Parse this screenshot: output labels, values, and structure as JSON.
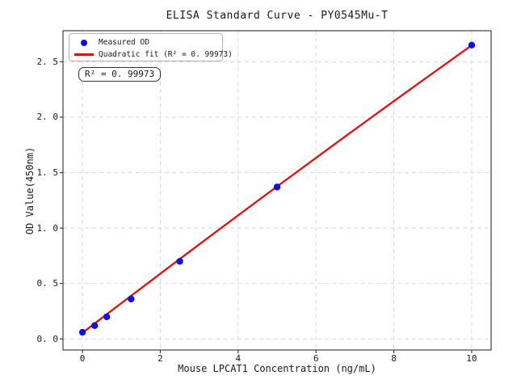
{
  "chart_data": {
    "type": "scatter",
    "title": "ELISA Standard Curve - PY0545Mu-T",
    "xlabel": "Mouse LPCAT1 Concentration (ng/mL)",
    "ylabel": "OD Value(450nm)",
    "xlim": [
      -0.5,
      10.5
    ],
    "ylim": [
      -0.1,
      2.78
    ],
    "x_ticks": {
      "values": [
        0,
        2,
        4,
        6,
        8,
        10
      ],
      "labels": [
        "0",
        "2",
        "4",
        "6",
        "8",
        "10"
      ]
    },
    "y_ticks": {
      "values": [
        0.0,
        0.5,
        1.0,
        1.5,
        2.0,
        2.5
      ],
      "labels": [
        "0. 0",
        "0. 5",
        "1. 0",
        "1. 5",
        "2. 0",
        "2. 5"
      ]
    },
    "grid": {
      "show": true,
      "style": "dashed",
      "color": "#d4d4d4"
    },
    "colors": {
      "scatter": "#0b0bee",
      "fit_line": "#e60d0d",
      "spine": "#2e2e2e"
    },
    "series": [
      {
        "name": "Measured OD",
        "type": "scatter",
        "color": "#0b0bee",
        "x": [
          0,
          0.313,
          0.625,
          1.25,
          2.5,
          5,
          10
        ],
        "y": [
          0.06,
          0.12,
          0.2,
          0.36,
          0.7,
          1.37,
          2.65
        ]
      },
      {
        "name": "Quadratic fit (R² = 0. 99973)",
        "type": "line",
        "color": "#e60d0d",
        "fit_coefficients": {
          "a": 0.055,
          "b": 0.2687,
          "c": -0.00094
        },
        "r_squared": 0.99973,
        "x_range": [
          0,
          10
        ]
      }
    ],
    "legend": {
      "position": "upper left",
      "measured_label": "Measured OD",
      "fit_label": "Quadratic fit (R² = 0. 99973)"
    },
    "annotation": {
      "text": "R² = 0. 99973"
    }
  }
}
